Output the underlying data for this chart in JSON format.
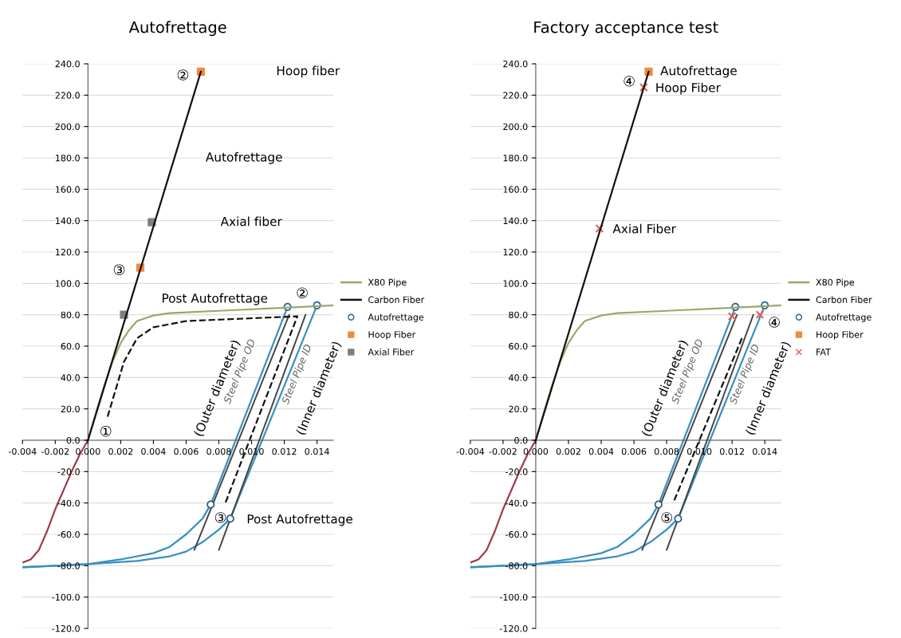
{
  "chart_data": [
    {
      "type": "line",
      "title": "Autofrettage",
      "xlim": [
        -0.004,
        0.015
      ],
      "ylim": [
        -120,
        240
      ],
      "xticks": [
        {
          "value": -0.004,
          "label": "-0.004"
        },
        {
          "value": -0.002,
          "label": "-0.002"
        },
        {
          "value": 0,
          "label": "0.000"
        },
        {
          "value": 0.002,
          "label": "0.002"
        },
        {
          "value": 0.004,
          "label": "0.004"
        },
        {
          "value": 0.006,
          "label": "0.006"
        },
        {
          "value": 0.008,
          "label": "0.008"
        },
        {
          "value": 0.01,
          "label": "0.010"
        },
        {
          "value": 0.012,
          "label": "0.012"
        },
        {
          "value": 0.014,
          "label": "0.014"
        }
      ],
      "yticks": [
        {
          "value": -120,
          "label": "-120.0"
        },
        {
          "value": -100,
          "label": "-100.0"
        },
        {
          "value": -80,
          "label": "-80.0"
        },
        {
          "value": -60,
          "label": "-60.0"
        },
        {
          "value": -40,
          "label": "-40.0"
        },
        {
          "value": -20,
          "label": "-20.0"
        },
        {
          "value": 0,
          "label": "0.0"
        },
        {
          "value": 20,
          "label": "20.0"
        },
        {
          "value": 40,
          "label": "40.0"
        },
        {
          "value": 60,
          "label": "60.0"
        },
        {
          "value": 80,
          "label": "80.0"
        },
        {
          "value": 100,
          "label": "100.0"
        },
        {
          "value": 120,
          "label": "120.0"
        },
        {
          "value": 140,
          "label": "140.0"
        },
        {
          "value": 160,
          "label": "160.0"
        },
        {
          "value": 180,
          "label": "180.0"
        },
        {
          "value": 200,
          "label": "200.0"
        },
        {
          "value": 220,
          "label": "220.0"
        },
        {
          "value": 240,
          "label": "240.0"
        }
      ],
      "grid": "y",
      "legend": "right",
      "series": [
        {
          "name": "X80 Pipe",
          "type": "line",
          "color": "#9aa86a",
          "x": [
            0,
            0.0005,
            0.001,
            0.0015,
            0.002,
            0.0025,
            0.003,
            0.004,
            0.005,
            0.008,
            0.012,
            0.014,
            0.015
          ],
          "values": [
            0,
            18,
            35,
            50,
            62,
            70,
            76,
            79.5,
            81,
            82.5,
            84.5,
            85.5,
            86
          ]
        },
        {
          "name": "Carbon Fiber",
          "type": "line",
          "color": "#111111",
          "x": [
            0,
            0.0069
          ],
          "values": [
            0,
            235
          ]
        },
        {
          "type": "line",
          "color": "#a33a4a",
          "x": [
            -0.004,
            -0.0035,
            -0.003,
            -0.0025,
            -0.002,
            -0.0015,
            -0.001,
            -0.0005,
            0
          ],
          "values": [
            -78,
            -76,
            -70,
            -58,
            -44,
            -32,
            -20,
            -9,
            0
          ]
        },
        {
          "type": "line",
          "color": "#3a8fc0",
          "x": [
            -0.004,
            0,
            0.002,
            0.004,
            0.005,
            0.006,
            0.007,
            0.0075,
            0.0122
          ],
          "values": [
            -81,
            -79,
            -76,
            -72,
            -68,
            -60,
            -50,
            -41,
            85
          ]
        },
        {
          "type": "line",
          "color": "#3a8fc0",
          "x": [
            -0.004,
            0,
            0.003,
            0.005,
            0.006,
            0.007,
            0.008,
            0.0087,
            0.014
          ],
          "values": [
            -81,
            -79,
            -77,
            -74,
            -71,
            -65,
            -57,
            -50,
            86
          ]
        },
        {
          "type": "line",
          "color": "#444444",
          "x": [
            0.0065,
            0.0123
          ],
          "values": [
            -70,
            80
          ]
        },
        {
          "type": "line",
          "color": "#444444",
          "x": [
            0.008,
            0.0133
          ],
          "values": [
            -70,
            80
          ]
        },
        {
          "type": "line",
          "color": "#111111",
          "line_style": "dashed",
          "x": [
            0.0012,
            0.0022,
            0.003,
            0.004,
            0.006,
            0.0128,
            0.0084
          ],
          "values": [
            15,
            50,
            65,
            72,
            76,
            79,
            -40
          ]
        },
        {
          "name": "Autofrettage",
          "type": "scatter",
          "marker": "circle",
          "color": "#2f5f8a",
          "x": [
            0.0122,
            0.014,
            0.0075,
            0.0087
          ],
          "values": [
            85,
            86,
            -41,
            -50
          ]
        },
        {
          "name": "Hoop Fiber",
          "type": "scatter",
          "marker": "square",
          "color": "#f08a3c",
          "x": [
            0.0069,
            0.0032
          ],
          "values": [
            235,
            110
          ]
        },
        {
          "name": "Axial Fiber",
          "type": "scatter",
          "marker": "square",
          "color": "#7f7f7f",
          "x": [
            0.0039,
            0.0022
          ],
          "values": [
            139,
            80
          ]
        }
      ],
      "annotations": [
        "①",
        "②",
        "Hoop fiber",
        "Autofrettage",
        "Axial fiber",
        "③",
        "Post Autofrettage",
        "②",
        "(Outer diameter)",
        "Steel Pipe OD",
        "Steel Pipe ID",
        "(Inner diameter)",
        "③",
        "Post Autofrettage"
      ]
    },
    {
      "type": "line",
      "title": "Factory acceptance test",
      "xlim": [
        -0.004,
        0.015
      ],
      "ylim": [
        -120,
        240
      ],
      "xticks": [
        {
          "value": -0.004,
          "label": "-0.004"
        },
        {
          "value": -0.002,
          "label": "-0.002"
        },
        {
          "value": 0,
          "label": "0.000"
        },
        {
          "value": 0.002,
          "label": "0.002"
        },
        {
          "value": 0.004,
          "label": "0.004"
        },
        {
          "value": 0.006,
          "label": "0.006"
        },
        {
          "value": 0.008,
          "label": "0.008"
        },
        {
          "value": 0.01,
          "label": "0.010"
        },
        {
          "value": 0.012,
          "label": "0.012"
        },
        {
          "value": 0.014,
          "label": "0.014"
        }
      ],
      "yticks": [
        {
          "value": -120,
          "label": "-120.0"
        },
        {
          "value": -100,
          "label": "-100.0"
        },
        {
          "value": -80,
          "label": "-80.0"
        },
        {
          "value": -60,
          "label": "-60.0"
        },
        {
          "value": -40,
          "label": "-40.0"
        },
        {
          "value": -20,
          "label": "-20.0"
        },
        {
          "value": 0,
          "label": "0.0"
        },
        {
          "value": 20,
          "label": "20.0"
        },
        {
          "value": 40,
          "label": "40.0"
        },
        {
          "value": 60,
          "label": "60.0"
        },
        {
          "value": 80,
          "label": "80.0"
        },
        {
          "value": 100,
          "label": "100.0"
        },
        {
          "value": 120,
          "label": "120.0"
        },
        {
          "value": 140,
          "label": "140.0"
        },
        {
          "value": 160,
          "label": "160.0"
        },
        {
          "value": 180,
          "label": "180.0"
        },
        {
          "value": 200,
          "label": "200.0"
        },
        {
          "value": 220,
          "label": "220.0"
        },
        {
          "value": 240,
          "label": "240.0"
        }
      ],
      "grid": "y",
      "legend": "right",
      "series": [
        {
          "name": "X80 Pipe",
          "type": "line",
          "color": "#9aa86a",
          "x": [
            0,
            0.0005,
            0.001,
            0.0015,
            0.002,
            0.0025,
            0.003,
            0.004,
            0.005,
            0.008,
            0.012,
            0.014,
            0.015
          ],
          "values": [
            0,
            18,
            35,
            50,
            62,
            70,
            76,
            79.5,
            81,
            82.5,
            84.5,
            85.5,
            86
          ]
        },
        {
          "name": "Carbon Fiber",
          "type": "line",
          "color": "#111111",
          "x": [
            0,
            0.0069
          ],
          "values": [
            0,
            235
          ]
        },
        {
          "type": "line",
          "color": "#a33a4a",
          "x": [
            -0.004,
            -0.0035,
            -0.003,
            -0.0025,
            -0.002,
            -0.0015,
            -0.001,
            -0.0005,
            0
          ],
          "values": [
            -78,
            -76,
            -70,
            -58,
            -44,
            -32,
            -20,
            -9,
            0
          ]
        },
        {
          "type": "line",
          "color": "#3a8fc0",
          "x": [
            -0.004,
            0,
            0.002,
            0.004,
            0.005,
            0.006,
            0.007,
            0.0075,
            0.0122
          ],
          "values": [
            -81,
            -79,
            -76,
            -72,
            -68,
            -60,
            -50,
            -41,
            85
          ]
        },
        {
          "type": "line",
          "color": "#3a8fc0",
          "x": [
            -0.004,
            0,
            0.003,
            0.005,
            0.006,
            0.007,
            0.008,
            0.0087,
            0.014
          ],
          "values": [
            -81,
            -79,
            -77,
            -74,
            -71,
            -65,
            -57,
            -50,
            86
          ]
        },
        {
          "type": "line",
          "color": "#444444",
          "x": [
            0.0065,
            0.0123
          ],
          "values": [
            -70,
            80
          ]
        },
        {
          "type": "line",
          "color": "#444444",
          "x": [
            0.008,
            0.0133
          ],
          "values": [
            -70,
            80
          ]
        },
        {
          "type": "line",
          "color": "#111111",
          "line_style": "dashed",
          "x": [
            0.0126,
            0.0084
          ],
          "values": [
            65,
            -40
          ]
        },
        {
          "name": "Autofrettage",
          "type": "scatter",
          "marker": "circle",
          "color": "#2f5f8a",
          "x": [
            0.0122,
            0.014,
            0.0075,
            0.0087
          ],
          "values": [
            85,
            86,
            -41,
            -50
          ]
        },
        {
          "name": "Hoop Fiber",
          "type": "scatter",
          "marker": "square",
          "color": "#f08a3c",
          "x": [
            0.0069
          ],
          "values": [
            235
          ]
        },
        {
          "name": "FAT",
          "type": "scatter",
          "marker": "cross",
          "color": "#e0605a",
          "x": [
            0.0066,
            0.0039,
            0.012,
            0.0137
          ],
          "values": [
            225,
            135,
            79,
            80
          ]
        }
      ],
      "annotations": [
        "④",
        "Autofrettage",
        "Hoop Fiber",
        "Axial Fiber",
        "④",
        "(Outer diameter)",
        "Steel Pipe OD",
        "Steel Pipe ID",
        "(Inner diameter)",
        "⑤"
      ]
    }
  ]
}
